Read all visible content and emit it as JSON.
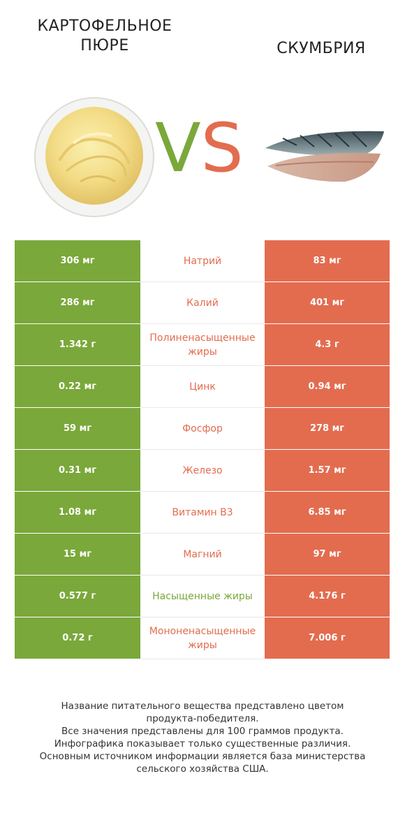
{
  "header": {
    "left_title_line1": "КАРТОФЕЛЬНОЕ",
    "left_title_line2": "ПЮРЕ",
    "right_title": "СКУМБРИЯ",
    "vs_v": "V",
    "vs_s": "S"
  },
  "colors": {
    "left": "#7aa83a",
    "right": "#e36c4f"
  },
  "rows": [
    {
      "left": "306 мг",
      "nutrient": "Натрий",
      "right": "83 мг",
      "winner": "right"
    },
    {
      "left": "286 мг",
      "nutrient": "Калий",
      "right": "401 мг",
      "winner": "right"
    },
    {
      "left": "1.342 г",
      "nutrient": "Полиненасыщенные жиры",
      "right": "4.3 г",
      "winner": "right"
    },
    {
      "left": "0.22 мг",
      "nutrient": "Цинк",
      "right": "0.94 мг",
      "winner": "right"
    },
    {
      "left": "59 мг",
      "nutrient": "Фосфор",
      "right": "278 мг",
      "winner": "right"
    },
    {
      "left": "0.31 мг",
      "nutrient": "Железо",
      "right": "1.57 мг",
      "winner": "right"
    },
    {
      "left": "1.08 мг",
      "nutrient": "Витамин B3",
      "right": "6.85 мг",
      "winner": "right"
    },
    {
      "left": "15 мг",
      "nutrient": "Магний",
      "right": "97 мг",
      "winner": "right"
    },
    {
      "left": "0.577 г",
      "nutrient": "Насыщенные жиры",
      "right": "4.176 г",
      "winner": "left"
    },
    {
      "left": "0.72 г",
      "nutrient": "Мононенасыщенные жиры",
      "right": "7.006 г",
      "winner": "right"
    }
  ],
  "footer": {
    "line1": "Название питательного вещества представлено цветом",
    "line2": "продукта-победителя.",
    "line3": "Все значения представлены для 100 граммов продукта.",
    "line4": "Инфографика показывает только существенные различия.",
    "line5": "Основным источником информации является база министерства",
    "line6": "сельского хозяйства США."
  }
}
